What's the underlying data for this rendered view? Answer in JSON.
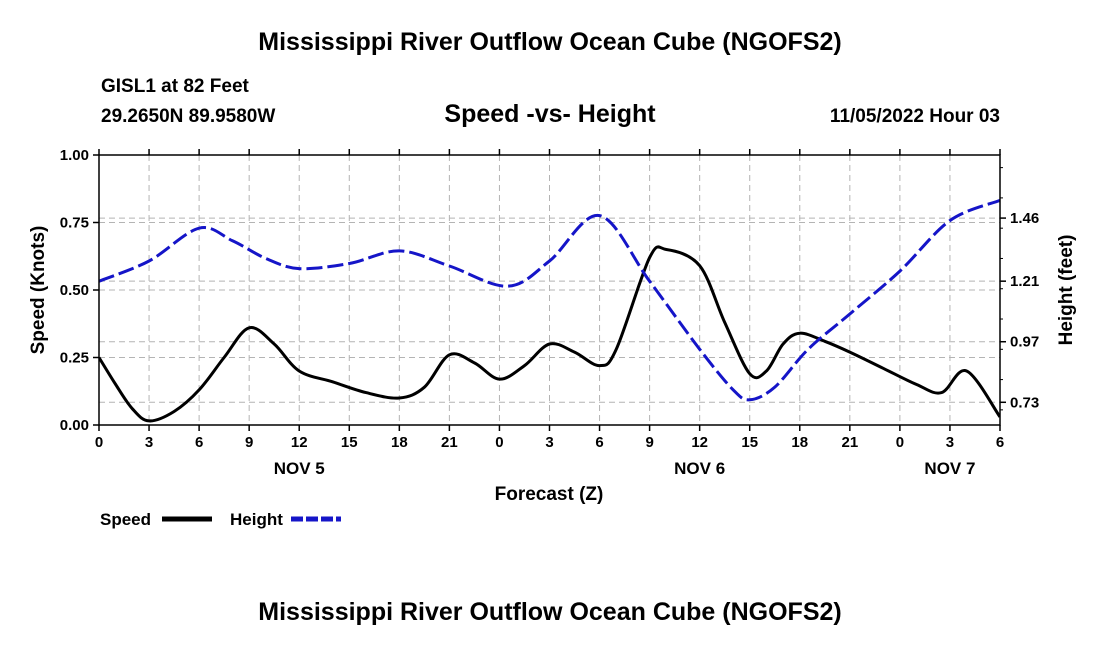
{
  "header": {
    "title": "Mississippi River Outflow Ocean Cube (NGOFS2)",
    "station": "GISL1 at 82 Feet",
    "coordinates": "29.2650N  89.9580W",
    "date": "11/05/2022 Hour 03"
  },
  "footer": {
    "title": "Mississippi River Outflow Ocean Cube (NGOFS2)"
  },
  "colors": {
    "speed": "#000000",
    "height": "#1515c8",
    "grid": "#b4b4b4"
  },
  "chart_data": {
    "type": "line",
    "title": "Speed -vs- Height",
    "xlabel": "Forecast (Z)",
    "ylabel": "Speed (Knots)",
    "y2label": "Height (feet)",
    "x_ticks": [
      "0",
      "3",
      "6",
      "9",
      "12",
      "15",
      "18",
      "21",
      "0",
      "3",
      "6",
      "9",
      "12",
      "15",
      "18",
      "21",
      "0",
      "3",
      "6"
    ],
    "x_range": [
      0,
      54
    ],
    "day_labels": [
      {
        "label": "NOV 5",
        "x": 12
      },
      {
        "label": "NOV 6",
        "x": 36
      },
      {
        "label": "NOV 7",
        "x": 51
      }
    ],
    "ylim": [
      0,
      1.0
    ],
    "y_ticks": [
      "0.00",
      "0.25",
      "0.50",
      "0.75",
      "1.00"
    ],
    "y2lim": [
      0.64,
      1.71
    ],
    "y2_ticks": [
      "0.73",
      "0.97",
      "1.21",
      "1.46"
    ],
    "grid": true,
    "legend": {
      "position": "bottom-left",
      "items": [
        {
          "name": "Speed",
          "style": "solid"
        },
        {
          "name": "Height",
          "style": "dashed"
        }
      ]
    },
    "series": [
      {
        "name": "Speed",
        "axis": "left",
        "x": [
          0,
          1,
          2,
          3,
          4.5,
          6,
          7.5,
          9,
          10.5,
          12,
          14,
          16,
          18,
          19.5,
          21,
          22.5,
          24,
          25.5,
          27,
          28.5,
          30,
          31,
          33,
          34,
          36,
          37.5,
          39,
          40,
          41,
          42,
          43.5,
          45,
          47,
          49,
          50.5,
          52,
          54
        ],
        "values": [
          0.25,
          0.15,
          0.06,
          0.015,
          0.05,
          0.13,
          0.25,
          0.36,
          0.3,
          0.2,
          0.16,
          0.12,
          0.1,
          0.14,
          0.26,
          0.23,
          0.17,
          0.22,
          0.3,
          0.27,
          0.22,
          0.28,
          0.62,
          0.65,
          0.59,
          0.38,
          0.19,
          0.2,
          0.3,
          0.34,
          0.31,
          0.27,
          0.21,
          0.15,
          0.12,
          0.2,
          0.03
        ]
      },
      {
        "name": "Height",
        "axis": "right",
        "x": [
          0,
          3,
          6,
          8,
          10,
          12,
          15,
          18,
          21,
          24.5,
          27,
          30,
          33,
          36,
          38,
          39,
          40.5,
          42.5,
          45,
          48,
          51,
          54
        ],
        "values": [
          1.21,
          1.29,
          1.42,
          1.37,
          1.3,
          1.26,
          1.28,
          1.33,
          1.27,
          1.19,
          1.29,
          1.47,
          1.21,
          0.94,
          0.78,
          0.74,
          0.79,
          0.94,
          1.08,
          1.25,
          1.45,
          1.53
        ]
      }
    ]
  }
}
